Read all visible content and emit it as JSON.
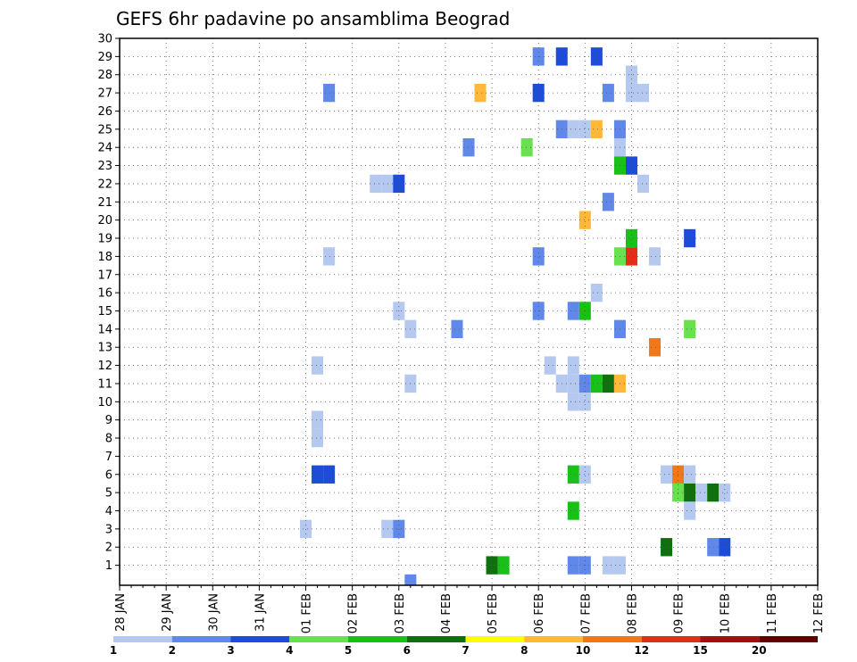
{
  "chart_data": {
    "type": "heatmap",
    "title": "GEFS 6hr padavine po ansamblima Beograd",
    "xlabel": "",
    "ylabel": "",
    "x_ticks": [
      "28 JAN",
      "29 JAN",
      "30 JAN",
      "31 JAN",
      "01 FEB",
      "02 FEB",
      "03 FEB",
      "04 FEB",
      "05 FEB",
      "06 FEB",
      "07 FEB",
      "08 FEB",
      "09 FEB",
      "10 FEB",
      "11 FEB",
      "12 FEB"
    ],
    "xlim_days": [
      0,
      15
    ],
    "ylim": [
      0,
      30
    ],
    "y_ticks": [
      1,
      2,
      3,
      4,
      5,
      6,
      7,
      8,
      9,
      10,
      11,
      12,
      13,
      14,
      15,
      16,
      17,
      18,
      19,
      20,
      21,
      22,
      23,
      24,
      25,
      26,
      27,
      28,
      29,
      30
    ],
    "grid": true,
    "colorbar": {
      "labels": [
        "1",
        "2",
        "3",
        "4",
        "5",
        "6",
        "7",
        "8",
        "10",
        "12",
        "15",
        "20"
      ],
      "colors": [
        "#b4c8f0",
        "#6088e8",
        "#1c4cd8",
        "#68e050",
        "#18c018",
        "#107010",
        "#ffff00",
        "#ffb838",
        "#f07818",
        "#e03018",
        "#a01010",
        "#600000"
      ]
    },
    "cells": [
      {
        "d": 9.0,
        "m": 29,
        "c": "#6088e8"
      },
      {
        "d": 9.5,
        "m": 29,
        "c": "#1c4cd8"
      },
      {
        "d": 10.25,
        "m": 29,
        "c": "#1c4cd8"
      },
      {
        "d": 11.0,
        "m": 28,
        "c": "#b4c8f0"
      },
      {
        "d": 4.5,
        "m": 27,
        "c": "#6088e8"
      },
      {
        "d": 7.75,
        "m": 27,
        "c": "#ffb838"
      },
      {
        "d": 9.0,
        "m": 27,
        "c": "#1c4cd8"
      },
      {
        "d": 10.5,
        "m": 27,
        "c": "#6088e8"
      },
      {
        "d": 11.0,
        "m": 27,
        "c": "#b4c8f0"
      },
      {
        "d": 11.25,
        "m": 27,
        "c": "#b4c8f0"
      },
      {
        "d": 9.5,
        "m": 25,
        "c": "#6088e8"
      },
      {
        "d": 9.75,
        "m": 25,
        "c": "#b4c8f0"
      },
      {
        "d": 10.0,
        "m": 25,
        "c": "#b4c8f0"
      },
      {
        "d": 10.25,
        "m": 25,
        "c": "#ffb838"
      },
      {
        "d": 10.75,
        "m": 25,
        "c": "#6088e8"
      },
      {
        "d": 7.5,
        "m": 24,
        "c": "#6088e8"
      },
      {
        "d": 8.75,
        "m": 24,
        "c": "#68e050"
      },
      {
        "d": 10.75,
        "m": 24,
        "c": "#b4c8f0"
      },
      {
        "d": 10.75,
        "m": 23,
        "c": "#18c018"
      },
      {
        "d": 11.0,
        "m": 23,
        "c": "#1c4cd8"
      },
      {
        "d": 5.5,
        "m": 22,
        "c": "#b4c8f0"
      },
      {
        "d": 5.75,
        "m": 22,
        "c": "#b4c8f0"
      },
      {
        "d": 6.0,
        "m": 22,
        "c": "#1c4cd8"
      },
      {
        "d": 11.25,
        "m": 22,
        "c": "#b4c8f0"
      },
      {
        "d": 10.5,
        "m": 21,
        "c": "#6088e8"
      },
      {
        "d": 10.0,
        "m": 20,
        "c": "#ffb838"
      },
      {
        "d": 12.25,
        "m": 19,
        "c": "#1c4cd8"
      },
      {
        "d": 11.0,
        "m": 19,
        "c": "#18c018"
      },
      {
        "d": 4.5,
        "m": 18,
        "c": "#b4c8f0"
      },
      {
        "d": 9.0,
        "m": 18,
        "c": "#6088e8"
      },
      {
        "d": 10.75,
        "m": 18,
        "c": "#68e050"
      },
      {
        "d": 11.0,
        "m": 18,
        "c": "#e03018"
      },
      {
        "d": 11.5,
        "m": 18,
        "c": "#b4c8f0"
      },
      {
        "d": 10.25,
        "m": 16,
        "c": "#b4c8f0"
      },
      {
        "d": 6.0,
        "m": 15,
        "c": "#b4c8f0"
      },
      {
        "d": 9.0,
        "m": 15,
        "c": "#6088e8"
      },
      {
        "d": 9.75,
        "m": 15,
        "c": "#6088e8"
      },
      {
        "d": 10.0,
        "m": 15,
        "c": "#18c018"
      },
      {
        "d": 6.25,
        "m": 14,
        "c": "#b4c8f0"
      },
      {
        "d": 7.25,
        "m": 14,
        "c": "#6088e8"
      },
      {
        "d": 10.75,
        "m": 14,
        "c": "#6088e8"
      },
      {
        "d": 12.25,
        "m": 14,
        "c": "#68e050"
      },
      {
        "d": 11.5,
        "m": 13,
        "c": "#f07818"
      },
      {
        "d": 4.25,
        "m": 12,
        "c": "#b4c8f0"
      },
      {
        "d": 9.75,
        "m": 12,
        "c": "#b4c8f0"
      },
      {
        "d": 9.25,
        "m": 12,
        "c": "#b4c8f0"
      },
      {
        "d": 6.25,
        "m": 11,
        "c": "#b4c8f0"
      },
      {
        "d": 9.5,
        "m": 11,
        "c": "#b4c8f0"
      },
      {
        "d": 9.75,
        "m": 11,
        "c": "#b4c8f0"
      },
      {
        "d": 10.0,
        "m": 11,
        "c": "#6088e8"
      },
      {
        "d": 10.25,
        "m": 11,
        "c": "#18c018"
      },
      {
        "d": 10.5,
        "m": 11,
        "c": "#107010"
      },
      {
        "d": 10.75,
        "m": 11,
        "c": "#ffb838"
      },
      {
        "d": 9.75,
        "m": 10,
        "c": "#b4c8f0"
      },
      {
        "d": 10.0,
        "m": 10,
        "c": "#b4c8f0"
      },
      {
        "d": 4.25,
        "m": 9,
        "c": "#b4c8f0"
      },
      {
        "d": 4.25,
        "m": 8,
        "c": "#b4c8f0"
      },
      {
        "d": 4.25,
        "m": 6,
        "c": "#1c4cd8"
      },
      {
        "d": 4.5,
        "m": 6,
        "c": "#1c4cd8"
      },
      {
        "d": 9.75,
        "m": 6,
        "c": "#18c018"
      },
      {
        "d": 10.0,
        "m": 6,
        "c": "#b4c8f0"
      },
      {
        "d": 11.75,
        "m": 6,
        "c": "#b4c8f0"
      },
      {
        "d": 12.0,
        "m": 6,
        "c": "#f07818"
      },
      {
        "d": 12.25,
        "m": 6,
        "c": "#b4c8f0"
      },
      {
        "d": 12.0,
        "m": 5,
        "c": "#68e050"
      },
      {
        "d": 12.25,
        "m": 5,
        "c": "#107010"
      },
      {
        "d": 12.5,
        "m": 5,
        "c": "#b4c8f0"
      },
      {
        "d": 12.75,
        "m": 5,
        "c": "#107010"
      },
      {
        "d": 13.0,
        "m": 5,
        "c": "#b4c8f0"
      },
      {
        "d": 9.75,
        "m": 4,
        "c": "#18c018"
      },
      {
        "d": 12.25,
        "m": 4,
        "c": "#b4c8f0"
      },
      {
        "d": 4.0,
        "m": 3,
        "c": "#b4c8f0"
      },
      {
        "d": 5.75,
        "m": 3,
        "c": "#b4c8f0"
      },
      {
        "d": 6.0,
        "m": 3,
        "c": "#6088e8"
      },
      {
        "d": 12.75,
        "m": 2,
        "c": "#6088e8"
      },
      {
        "d": 13.0,
        "m": 2,
        "c": "#1c4cd8"
      },
      {
        "d": 11.75,
        "m": 2,
        "c": "#107010"
      },
      {
        "d": 8.0,
        "m": 1,
        "c": "#107010"
      },
      {
        "d": 8.25,
        "m": 1,
        "c": "#18c018"
      },
      {
        "d": 9.75,
        "m": 1,
        "c": "#6088e8"
      },
      {
        "d": 10.0,
        "m": 1,
        "c": "#6088e8"
      },
      {
        "d": 10.5,
        "m": 1,
        "c": "#b4c8f0"
      },
      {
        "d": 10.75,
        "m": 1,
        "c": "#b4c8f0"
      },
      {
        "d": 6.25,
        "m": 0,
        "c": "#6088e8"
      }
    ]
  }
}
